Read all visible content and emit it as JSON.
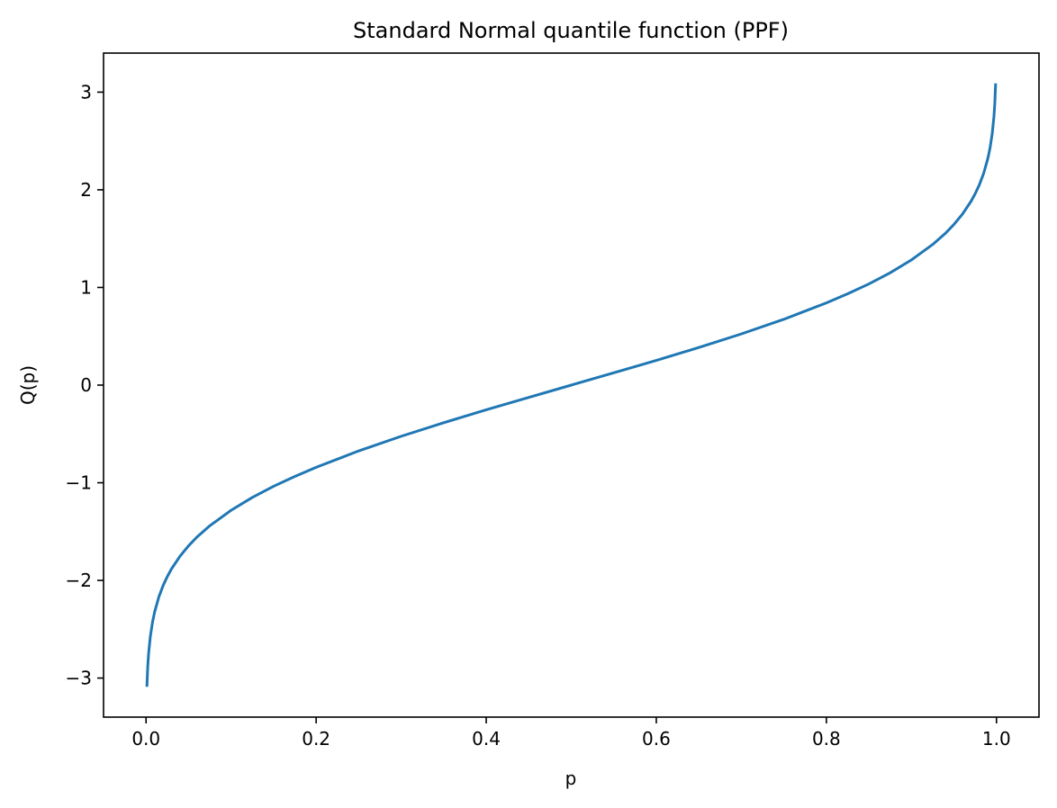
{
  "chart_data": {
    "type": "line",
    "title": "Standard Normal quantile function (PPF)",
    "xlabel": "p",
    "ylabel": "Q(p)",
    "xlim": [
      -0.05,
      1.05
    ],
    "ylim": [
      -3.4,
      3.4
    ],
    "grid": false,
    "x_ticks": [
      0.0,
      0.2,
      0.4,
      0.6,
      0.8,
      1.0
    ],
    "x_tick_labels": [
      "0.0",
      "0.2",
      "0.4",
      "0.6",
      "0.8",
      "1.0"
    ],
    "y_ticks": [
      -3,
      -2,
      -1,
      0,
      1,
      2,
      3
    ],
    "y_tick_labels": [
      "−3",
      "−2",
      "−1",
      "0",
      "1",
      "2",
      "3"
    ],
    "series": [
      {
        "color": "#1f77b4",
        "x": [
          0.001,
          0.002,
          0.003,
          0.005,
          0.0075,
          0.01,
          0.015,
          0.02,
          0.025,
          0.03,
          0.04,
          0.05,
          0.06,
          0.075,
          0.1,
          0.125,
          0.15,
          0.175,
          0.2,
          0.25,
          0.3,
          0.35,
          0.4,
          0.45,
          0.5,
          0.55,
          0.6,
          0.65,
          0.7,
          0.75,
          0.8,
          0.825,
          0.85,
          0.875,
          0.9,
          0.925,
          0.94,
          0.95,
          0.96,
          0.97,
          0.975,
          0.98,
          0.985,
          0.99,
          0.9925,
          0.995,
          0.997,
          0.998,
          0.999
        ],
        "y": [
          -3.09,
          -2.878,
          -2.748,
          -2.576,
          -2.432,
          -2.326,
          -2.17,
          -2.054,
          -1.96,
          -1.881,
          -1.751,
          -1.645,
          -1.555,
          -1.44,
          -1.282,
          -1.15,
          -1.036,
          -0.935,
          -0.842,
          -0.674,
          -0.524,
          -0.385,
          -0.253,
          -0.126,
          0.0,
          0.126,
          0.253,
          0.385,
          0.524,
          0.674,
          0.842,
          0.935,
          1.036,
          1.15,
          1.282,
          1.44,
          1.555,
          1.645,
          1.751,
          1.881,
          1.96,
          2.054,
          2.17,
          2.326,
          2.432,
          2.576,
          2.748,
          2.878,
          3.09
        ]
      }
    ]
  }
}
